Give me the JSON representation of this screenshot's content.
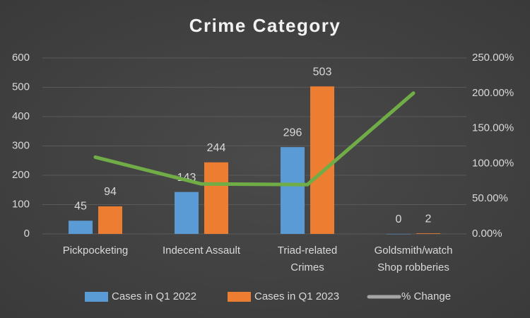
{
  "chart_data": {
    "type": "bar_line",
    "title": "Crime Category",
    "categories": [
      "Pickpocketing",
      "Indecent Assault",
      "Triad-related Crimes",
      "Goldsmith/watch Shop robberies"
    ],
    "series": [
      {
        "name": "Cases in Q1 2022",
        "color": "#5b9bd5",
        "values": [
          45,
          143,
          296,
          0
        ]
      },
      {
        "name": "Cases in Q1 2023",
        "color": "#ed7d31",
        "values": [
          94,
          244,
          503,
          2
        ]
      },
      {
        "name": "% Change",
        "color": "#70ad47",
        "legend_color": "#a5a5a5",
        "axis": "y2",
        "values": [
          109,
          71,
          70,
          200
        ]
      }
    ],
    "ylim": [
      0,
      600
    ],
    "yticks": [
      0,
      100,
      200,
      300,
      400,
      500,
      600
    ],
    "y2lim": [
      0,
      250
    ],
    "y2ticks": [
      {
        "value": 0,
        "label": "0.00%"
      },
      {
        "value": 50,
        "label": "50.00%"
      },
      {
        "value": 100,
        "label": "100.00%"
      },
      {
        "value": 150,
        "label": "150.00%"
      },
      {
        "value": 200,
        "label": "200.00%"
      },
      {
        "value": 250,
        "label": "250.00%"
      }
    ],
    "grid": true,
    "legend": "bottom"
  }
}
